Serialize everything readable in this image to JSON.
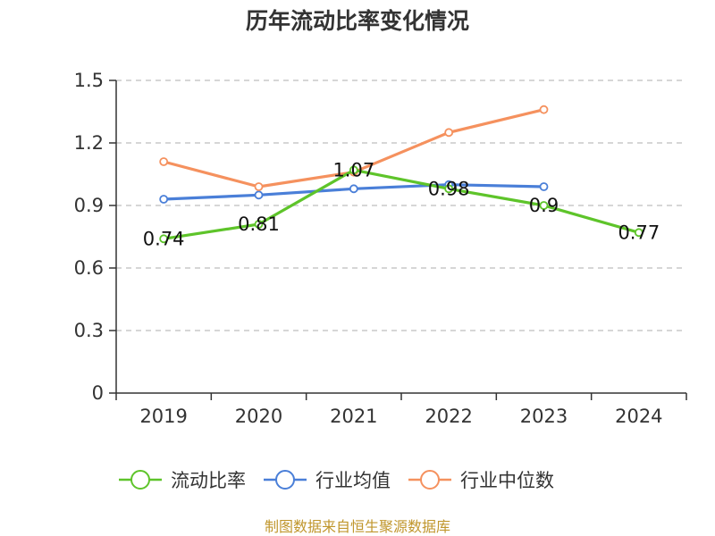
{
  "chart_data": {
    "type": "line",
    "title": "历年流动比率变化情况",
    "categories": [
      "2019",
      "2020",
      "2021",
      "2022",
      "2023",
      "2024"
    ],
    "ylim": [
      0,
      1.5
    ],
    "yticks": [
      0,
      0.3,
      0.6,
      0.9,
      1.2,
      1.5
    ],
    "ytick_labels": [
      "0",
      "0.3",
      "0.6",
      "0.9",
      "1.2",
      "1.5"
    ],
    "grid": true,
    "legend_position": "bottom",
    "series": [
      {
        "name": "流动比率",
        "color": "#5ec42a",
        "values": [
          0.74,
          0.81,
          1.07,
          0.98,
          0.9,
          0.77
        ],
        "labels": [
          "0.74",
          "0.81",
          "1.07",
          "0.98",
          "0.9",
          "0.77"
        ],
        "show_labels": true
      },
      {
        "name": "行业均值",
        "color": "#4a7fd8",
        "values": [
          0.93,
          0.95,
          0.98,
          1.0,
          0.99,
          null
        ],
        "show_labels": false
      },
      {
        "name": "行业中位数",
        "color": "#f5915e",
        "values": [
          1.11,
          0.99,
          1.06,
          1.25,
          1.36,
          null
        ],
        "show_labels": false
      }
    ],
    "source": "制图数据来自恒生聚源数据库"
  }
}
